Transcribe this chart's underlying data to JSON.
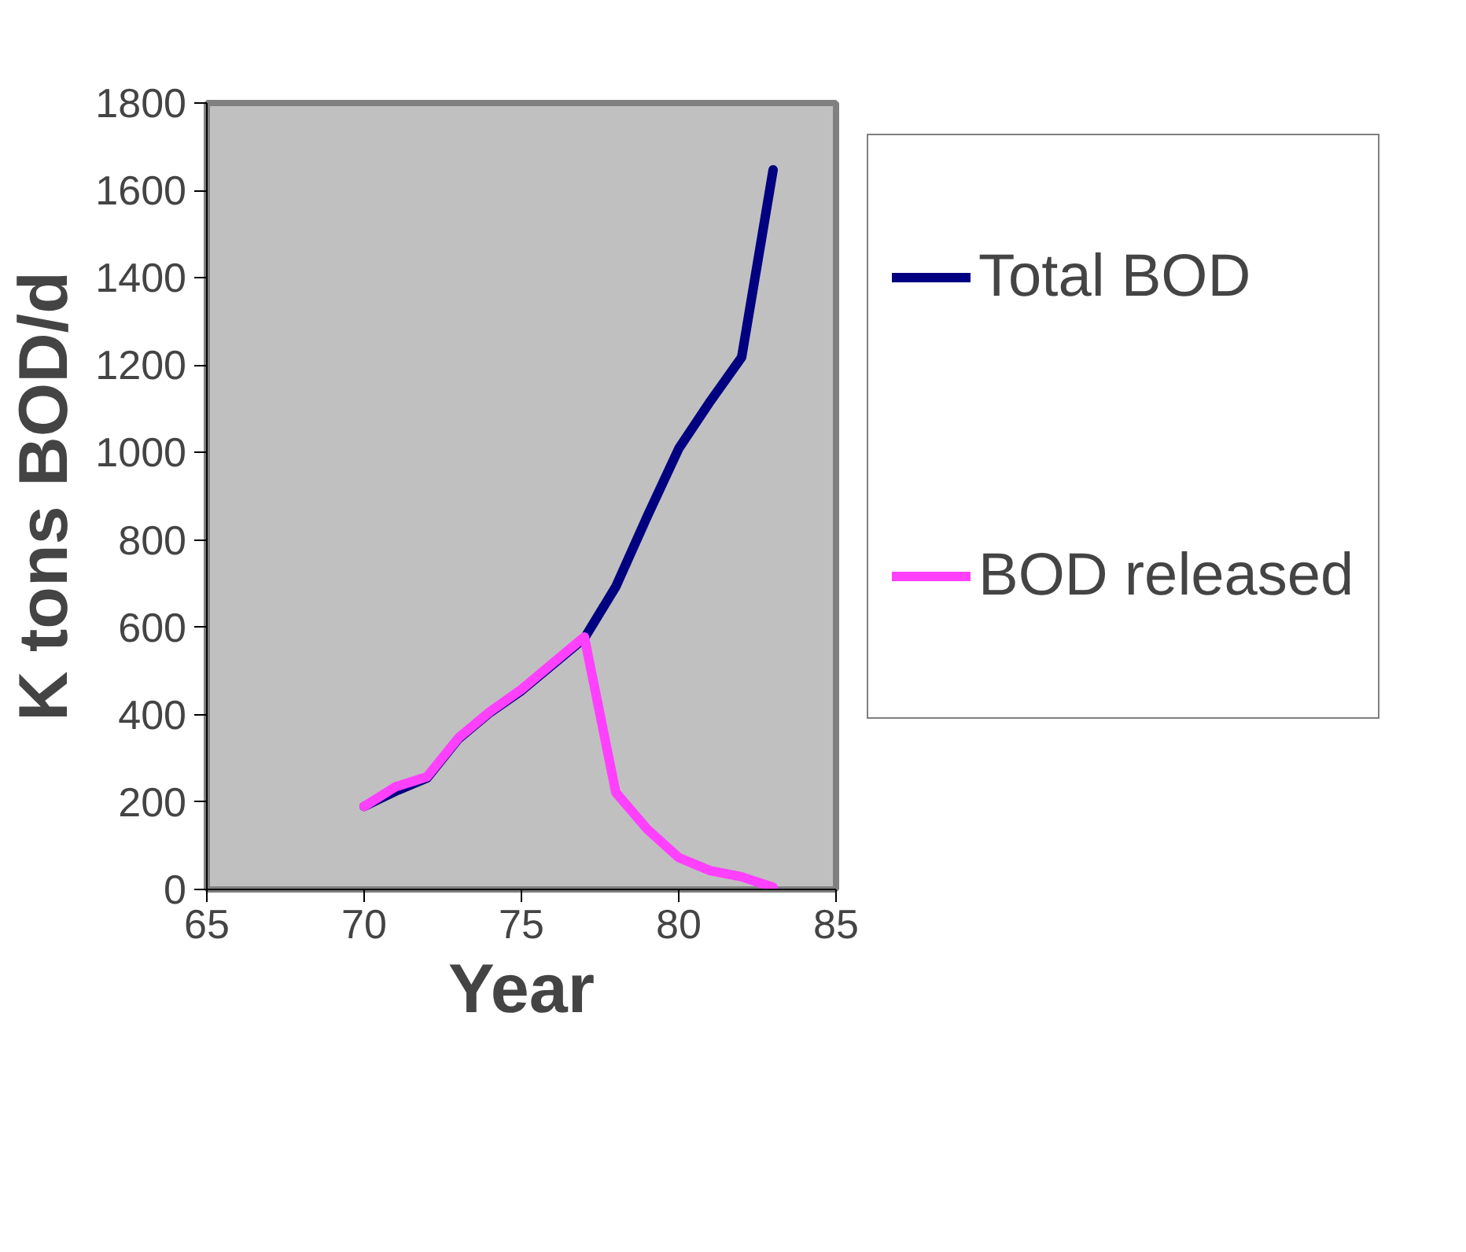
{
  "chart_data": {
    "type": "line",
    "xlabel": "Year",
    "ylabel": "K tons BOD/d",
    "x": [
      70,
      71,
      72,
      73,
      74,
      75,
      76,
      77,
      78,
      79,
      80,
      81,
      82,
      83
    ],
    "series": [
      {
        "name": "Total BOD",
        "color": "#000080",
        "values": [
          190,
          225,
          255,
          345,
          405,
          455,
          515,
          575,
          693,
          854,
          1009,
          1117,
          1218,
          1647
        ]
      },
      {
        "name": "BOD released",
        "color": "#ff40ff",
        "values": [
          190,
          235,
          258,
          347,
          407,
          458,
          518,
          578,
          222,
          138,
          73,
          43,
          29,
          5
        ]
      }
    ],
    "xlim": [
      65,
      85
    ],
    "xticks": [
      65,
      70,
      75,
      80,
      85
    ],
    "ylim": [
      0,
      1800
    ],
    "yticks": [
      0,
      200,
      400,
      600,
      800,
      1000,
      1200,
      1400,
      1600,
      1800
    ],
    "grid": false,
    "legend": "right",
    "marker": "none",
    "line_style": "solid"
  }
}
